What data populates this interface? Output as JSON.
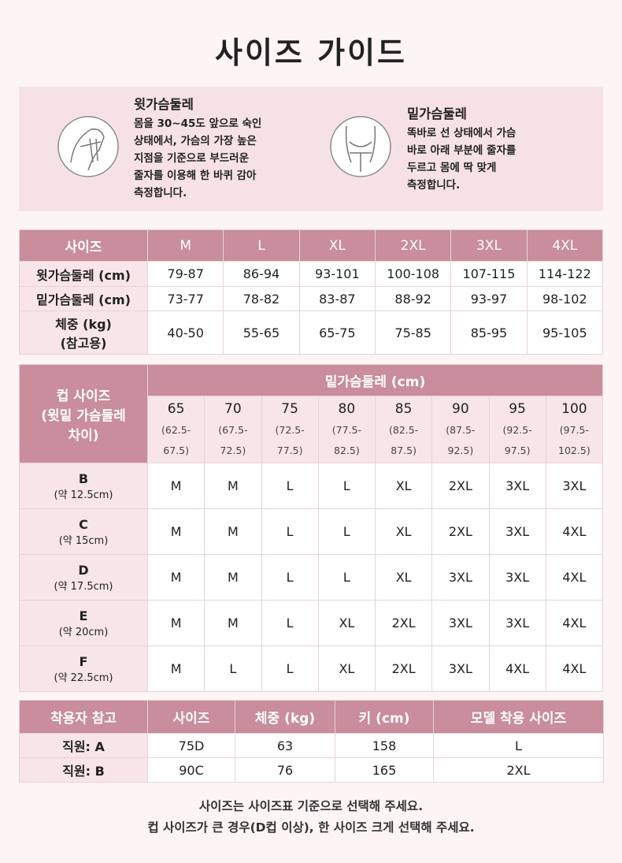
{
  "title": "사이즈 가이드",
  "guides": [
    {
      "label": "윗가슴둘레",
      "lines": [
        "몸을 30~45도 앞으로 숙인",
        "상태에서, 가슴의 가장 높은",
        "지점을 기준으로 부드러운",
        "줄자를 이용해 한 바퀴 감아",
        "측정합니다."
      ]
    },
    {
      "label": "밑가슴둘레",
      "lines": [
        "똑바로 선 상태에서 가슴",
        "바로 아래 부분에 줄자를",
        "두르고 몸에 딱 맞게",
        "측정합니다."
      ]
    }
  ],
  "size_table": {
    "header": [
      "사이즈",
      "M",
      "L",
      "XL",
      "2XL",
      "3XL",
      "4XL"
    ],
    "rows": [
      {
        "label": [
          "윗가슴둘레 (cm)"
        ],
        "values": [
          "79-87",
          "86-94",
          "93-101",
          "100-108",
          "107-115",
          "114-122"
        ]
      },
      {
        "label": [
          "밑가슴둘레 (cm)"
        ],
        "values": [
          "73-77",
          "78-82",
          "83-87",
          "88-92",
          "93-97",
          "98-102"
        ]
      },
      {
        "label": [
          "체중 (kg)",
          "(참고용)"
        ],
        "values": [
          "40-50",
          "55-65",
          "65-75",
          "75-85",
          "85-95",
          "95-105"
        ]
      }
    ]
  },
  "cup_table": {
    "corner": [
      "컵 사이즈",
      "(윗밑 가슴둘레",
      "차이)"
    ],
    "group": "밑가슴둘레 (cm)",
    "columns": [
      {
        "band": "65",
        "range": [
          "(62.5-",
          "67.5)"
        ]
      },
      {
        "band": "70",
        "range": [
          "(67.5-",
          "72.5)"
        ]
      },
      {
        "band": "75",
        "range": [
          "(72.5-",
          "77.5)"
        ]
      },
      {
        "band": "80",
        "range": [
          "(77.5-",
          "82.5)"
        ]
      },
      {
        "band": "85",
        "range": [
          "(82.5-",
          "87.5)"
        ]
      },
      {
        "band": "90",
        "range": [
          "(87.5-",
          "92.5)"
        ]
      },
      {
        "band": "95",
        "range": [
          "(92.5-",
          "97.5)"
        ]
      },
      {
        "band": "100",
        "range": [
          "(97.5-",
          "102.5)"
        ]
      }
    ],
    "rows": [
      {
        "cup": "B",
        "note": "(약 12.5cm)",
        "sizes": [
          "M",
          "M",
          "L",
          "L",
          "XL",
          "2XL",
          "3XL",
          "3XL"
        ]
      },
      {
        "cup": "C",
        "note": "(약 15cm)",
        "sizes": [
          "M",
          "M",
          "L",
          "L",
          "XL",
          "2XL",
          "3XL",
          "4XL"
        ]
      },
      {
        "cup": "D",
        "note": "(약 17.5cm)",
        "sizes": [
          "M",
          "M",
          "L",
          "L",
          "XL",
          "3XL",
          "3XL",
          "4XL"
        ]
      },
      {
        "cup": "E",
        "note": "(약 20cm)",
        "sizes": [
          "M",
          "M",
          "L",
          "XL",
          "2XL",
          "3XL",
          "3XL",
          "4XL"
        ]
      },
      {
        "cup": "F",
        "note": "(약 22.5cm)",
        "sizes": [
          "M",
          "L",
          "L",
          "XL",
          "2XL",
          "3XL",
          "4XL",
          "4XL"
        ]
      }
    ]
  },
  "wearer_table": {
    "header": [
      "착용자 참고",
      "사이즈",
      "체중 (kg)",
      "키 (cm)",
      "모델 착용 사이즈"
    ],
    "rows": [
      [
        "직원: A",
        "75D",
        "63",
        "158",
        "L"
      ],
      [
        "직원: B",
        "90C",
        "76",
        "165",
        "2XL"
      ]
    ]
  },
  "footer": [
    "사이즈는 사이즈표 기준으로 선택해 주세요.",
    "컵 사이즈가 큰 경우(D컵 이상), 한 사이즈 크게 선택해 주세요."
  ]
}
